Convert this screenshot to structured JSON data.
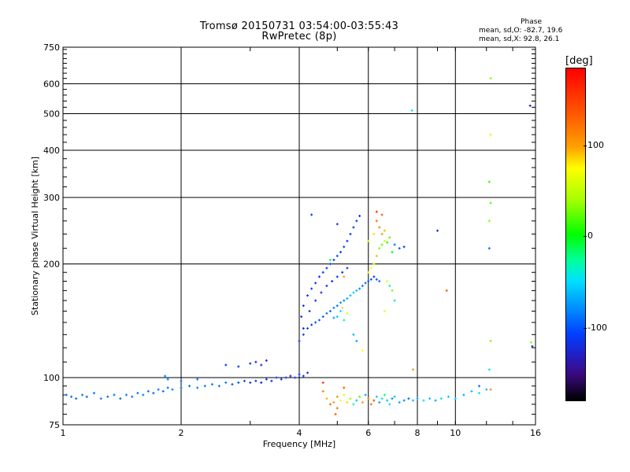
{
  "chart_data": {
    "type": "scatter",
    "title": "Tromsø 20150731 03:54:00-03:55:43",
    "subtitle": "RwPretec (8p)",
    "xlabel": "Frequency [MHz]",
    "ylabel": "Stationary phase Virtual Height [km]",
    "x_scale": "log",
    "y_scale": "log",
    "xlim": [
      1,
      16
    ],
    "ylim": [
      75,
      750
    ],
    "x_ticks": [
      1,
      2,
      4,
      6,
      8,
      10,
      16
    ],
    "y_ticks": [
      75,
      100,
      200,
      300,
      400,
      500,
      600,
      750
    ],
    "grid": true,
    "phase_stats": {
      "header": "Phase",
      "o_line": "mean, sd,O: -82.7, 19.6",
      "x_line": "mean, sd,X: 92.8, 26.1"
    },
    "colorbar": {
      "label": "[deg]",
      "ticks": [
        "100",
        "0",
        "-100"
      ],
      "range": [
        -180,
        180
      ]
    },
    "series": [
      {
        "points": [
          [
            1.02,
            90,
            -95
          ],
          [
            1.05,
            89,
            -90
          ],
          [
            1.08,
            88,
            -92
          ],
          [
            1.12,
            90,
            -88
          ],
          [
            1.15,
            89,
            -95
          ],
          [
            1.2,
            91,
            -90
          ],
          [
            1.25,
            88,
            -85
          ],
          [
            1.3,
            89,
            -92
          ],
          [
            1.35,
            90,
            -88
          ],
          [
            1.4,
            88,
            -95
          ],
          [
            1.45,
            90,
            -90
          ],
          [
            1.5,
            89,
            -88
          ],
          [
            1.55,
            91,
            -92
          ],
          [
            1.6,
            90,
            -85
          ],
          [
            1.65,
            92,
            -90
          ],
          [
            1.7,
            91,
            -95
          ],
          [
            1.75,
            93,
            -88
          ],
          [
            1.8,
            92,
            -92
          ],
          [
            1.85,
            94,
            -90
          ],
          [
            1.9,
            93,
            -85
          ],
          [
            2.0,
            94,
            -88
          ],
          [
            2.1,
            95,
            -92
          ],
          [
            2.2,
            94,
            -85
          ],
          [
            2.3,
            95,
            -90
          ],
          [
            2.4,
            96,
            -88
          ],
          [
            2.5,
            95,
            -92
          ],
          [
            2.6,
            97,
            -90
          ],
          [
            2.7,
            96,
            -100
          ],
          [
            2.8,
            97,
            -105
          ],
          [
            2.9,
            98,
            -110
          ],
          [
            3.0,
            97,
            -115
          ],
          [
            3.1,
            98,
            -120
          ],
          [
            3.2,
            97,
            -125
          ],
          [
            3.3,
            99,
            -120
          ],
          [
            3.4,
            98,
            -118
          ],
          [
            3.5,
            100,
            -115
          ],
          [
            3.6,
            99,
            -120
          ],
          [
            3.7,
            100,
            -118
          ],
          [
            3.8,
            101,
            -122
          ],
          [
            3.9,
            100,
            -120
          ],
          [
            4.0,
            102,
            -118
          ],
          [
            4.1,
            101,
            -110
          ],
          [
            4.2,
            103,
            -120
          ],
          [
            1.82,
            101,
            -80
          ],
          [
            1.85,
            99,
            -85
          ],
          [
            2.6,
            108,
            -110
          ],
          [
            2.8,
            107,
            -115
          ],
          [
            3.0,
            109,
            -120
          ],
          [
            3.1,
            110,
            -125
          ],
          [
            3.2,
            108,
            -118
          ],
          [
            3.3,
            111,
            -122
          ],
          [
            2.0,
            98,
            -95
          ],
          [
            2.2,
            99,
            -90
          ]
        ]
      },
      {
        "points": [
          [
            4.0,
            125,
            -115
          ],
          [
            4.1,
            130,
            -110
          ],
          [
            4.2,
            135,
            -105
          ],
          [
            4.3,
            138,
            -110
          ],
          [
            4.4,
            140,
            -100
          ],
          [
            4.5,
            142,
            -95
          ],
          [
            4.6,
            145,
            -100
          ],
          [
            4.7,
            148,
            -90
          ],
          [
            4.8,
            150,
            -95
          ],
          [
            4.9,
            153,
            -85
          ],
          [
            5.0,
            155,
            -90
          ],
          [
            5.1,
            158,
            -80
          ],
          [
            5.2,
            160,
            -85
          ],
          [
            5.3,
            162,
            -70
          ],
          [
            5.4,
            165,
            -60
          ],
          [
            5.5,
            168,
            -55
          ],
          [
            5.6,
            170,
            -65
          ],
          [
            5.7,
            172,
            -80
          ],
          [
            5.8,
            175,
            -90
          ],
          [
            5.9,
            178,
            -95
          ],
          [
            6.0,
            180,
            -100
          ],
          [
            6.1,
            182,
            -105
          ],
          [
            6.2,
            185,
            -110
          ],
          [
            6.3,
            182,
            -100
          ],
          [
            6.4,
            180,
            -90
          ],
          [
            4.05,
            145,
            -120
          ],
          [
            4.1,
            155,
            -118
          ],
          [
            4.2,
            165,
            -115
          ],
          [
            4.3,
            172,
            -110
          ],
          [
            4.4,
            178,
            -118
          ],
          [
            4.5,
            185,
            -115
          ],
          [
            4.6,
            190,
            -110
          ],
          [
            4.7,
            195,
            -112
          ],
          [
            4.8,
            200,
            -108
          ],
          [
            4.9,
            205,
            -110
          ],
          [
            5.0,
            210,
            -105
          ],
          [
            5.1,
            215,
            -110
          ],
          [
            5.2,
            222,
            -108
          ],
          [
            5.3,
            230,
            -112
          ],
          [
            5.4,
            240,
            -110
          ],
          [
            5.5,
            250,
            -115
          ],
          [
            5.6,
            260,
            -112
          ],
          [
            5.7,
            268,
            -118
          ],
          [
            4.1,
            135,
            -120
          ],
          [
            4.25,
            150,
            -118
          ],
          [
            4.4,
            160,
            -115
          ],
          [
            4.55,
            168,
            -118
          ],
          [
            4.7,
            175,
            -115
          ],
          [
            4.85,
            180,
            -120
          ],
          [
            5.0,
            185,
            -115
          ],
          [
            5.15,
            190,
            -118
          ],
          [
            5.3,
            195,
            -115
          ],
          [
            5.0,
            145,
            -60
          ],
          [
            5.1,
            150,
            -50
          ],
          [
            5.2,
            142,
            -40
          ],
          [
            5.3,
            148,
            60
          ],
          [
            5.15,
            153,
            80
          ],
          [
            4.9,
            144,
            -70
          ],
          [
            5.5,
            130,
            -65
          ],
          [
            5.6,
            125,
            -70
          ],
          [
            5.8,
            118,
            70
          ],
          [
            6.0,
            190,
            60
          ],
          [
            6.1,
            195,
            70
          ],
          [
            6.2,
            200,
            40
          ],
          [
            6.3,
            210,
            90
          ],
          [
            6.4,
            220,
            30
          ],
          [
            6.5,
            225,
            20
          ],
          [
            6.6,
            230,
            60
          ],
          [
            6.7,
            228,
            10
          ],
          [
            6.5,
            240,
            100
          ],
          [
            6.4,
            250,
            110
          ],
          [
            6.3,
            260,
            120
          ],
          [
            6.5,
            270,
            130
          ],
          [
            6.3,
            275,
            150
          ],
          [
            6.6,
            245,
            90
          ],
          [
            6.8,
            235,
            20
          ],
          [
            7.0,
            225,
            -90
          ],
          [
            7.2,
            220,
            -100
          ],
          [
            7.4,
            222,
            -110
          ],
          [
            6.9,
            215,
            0
          ],
          [
            6.7,
            180,
            60
          ],
          [
            6.8,
            175,
            -30
          ],
          [
            6.9,
            170,
            30
          ],
          [
            7.0,
            160,
            -50
          ],
          [
            6.6,
            150,
            70
          ],
          [
            4.3,
            270,
            -110
          ],
          [
            5.0,
            255,
            -115
          ],
          [
            4.8,
            205,
            -20
          ],
          [
            5.2,
            185,
            100
          ],
          [
            6.0,
            230,
            50
          ],
          [
            6.2,
            240,
            80
          ]
        ]
      },
      {
        "points": [
          [
            4.6,
            92,
            110
          ],
          [
            4.7,
            88,
            90
          ],
          [
            4.8,
            85,
            120
          ],
          [
            4.9,
            86,
            100
          ],
          [
            5.0,
            89,
            110
          ],
          [
            5.1,
            87,
            70
          ],
          [
            5.2,
            90,
            60
          ],
          [
            5.3,
            86,
            80
          ],
          [
            5.4,
            88,
            40
          ],
          [
            5.5,
            85,
            -30
          ],
          [
            5.6,
            87,
            -60
          ],
          [
            5.7,
            89,
            20
          ],
          [
            5.8,
            86,
            100
          ],
          [
            5.9,
            90,
            -70
          ],
          [
            6.0,
            88,
            110
          ],
          [
            6.1,
            85,
            120
          ],
          [
            6.2,
            87,
            140
          ],
          [
            6.3,
            89,
            -60
          ],
          [
            6.4,
            86,
            -70
          ],
          [
            6.5,
            88,
            -40
          ],
          [
            6.6,
            90,
            -20
          ],
          [
            6.7,
            87,
            -60
          ],
          [
            6.8,
            85,
            -50
          ],
          [
            6.9,
            88,
            -80
          ],
          [
            7.0,
            89,
            -60
          ],
          [
            7.2,
            86,
            -70
          ],
          [
            7.4,
            87,
            -80
          ],
          [
            7.6,
            88,
            -90
          ],
          [
            7.8,
            87,
            -60
          ],
          [
            8.0,
            88,
            -70
          ],
          [
            8.3,
            87,
            -50
          ],
          [
            8.6,
            88,
            -60
          ],
          [
            8.9,
            87,
            -70
          ],
          [
            9.2,
            88,
            -50
          ],
          [
            9.6,
            89,
            -60
          ],
          [
            10.0,
            88,
            -55
          ],
          [
            10.5,
            90,
            -70
          ],
          [
            11.0,
            92,
            -60
          ],
          [
            11.5,
            91,
            -50
          ],
          [
            12.0,
            93,
            -60
          ],
          [
            4.6,
            97,
            150
          ],
          [
            5.2,
            94,
            130
          ],
          [
            7.8,
            105,
            100
          ],
          [
            4.95,
            80,
            130
          ],
          [
            5.0,
            83,
            120
          ]
        ]
      },
      {
        "points": [
          [
            7.75,
            510,
            -40
          ],
          [
            12.3,
            620,
            30
          ],
          [
            12.3,
            440,
            60
          ],
          [
            12.2,
            330,
            10
          ],
          [
            12.3,
            290,
            20
          ],
          [
            12.2,
            260,
            30
          ],
          [
            12.2,
            220,
            -95
          ],
          [
            12.3,
            125,
            30
          ],
          [
            12.2,
            105,
            -50
          ],
          [
            12.3,
            93,
            110
          ],
          [
            9.0,
            245,
            -120
          ],
          [
            9.5,
            170,
            130
          ],
          [
            15.5,
            525,
            -130
          ],
          [
            15.6,
            124,
            30
          ],
          [
            15.7,
            121,
            -130
          ],
          [
            11.5,
            95,
            -90
          ]
        ]
      }
    ]
  }
}
